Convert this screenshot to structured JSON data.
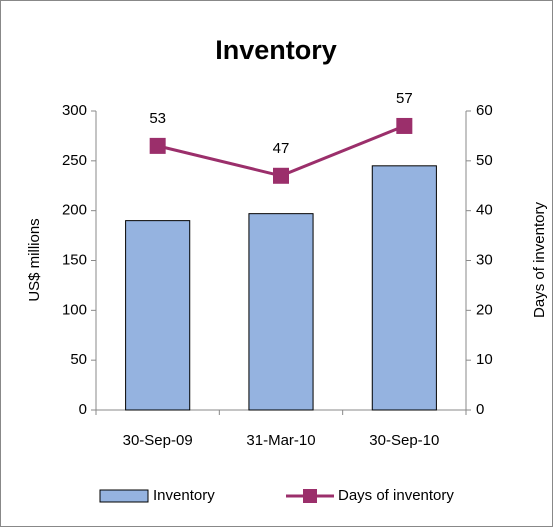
{
  "chart_data": {
    "type": "bar",
    "title": "Inventory",
    "categories": [
      "30-Sep-09",
      "31-Mar-10",
      "30-Sep-10"
    ],
    "series": [
      {
        "name": "Inventory",
        "type": "bar",
        "color": "#95b3e0",
        "values": [
          190,
          197,
          245
        ]
      },
      {
        "name": "Days of inventory",
        "type": "line",
        "axis": "y2",
        "color": "#9b2f6b",
        "values": [
          53,
          47,
          57
        ]
      }
    ],
    "ylabel": "US$ millions",
    "y2label": "Days of inventory",
    "ylim": [
      0,
      300
    ],
    "yticks": [
      0,
      50,
      100,
      150,
      200,
      250,
      300
    ],
    "y2lim": [
      0,
      60
    ],
    "y2ticks": [
      0,
      10,
      20,
      30,
      40,
      50,
      60
    ],
    "grid": false,
    "legend": "bottom"
  }
}
